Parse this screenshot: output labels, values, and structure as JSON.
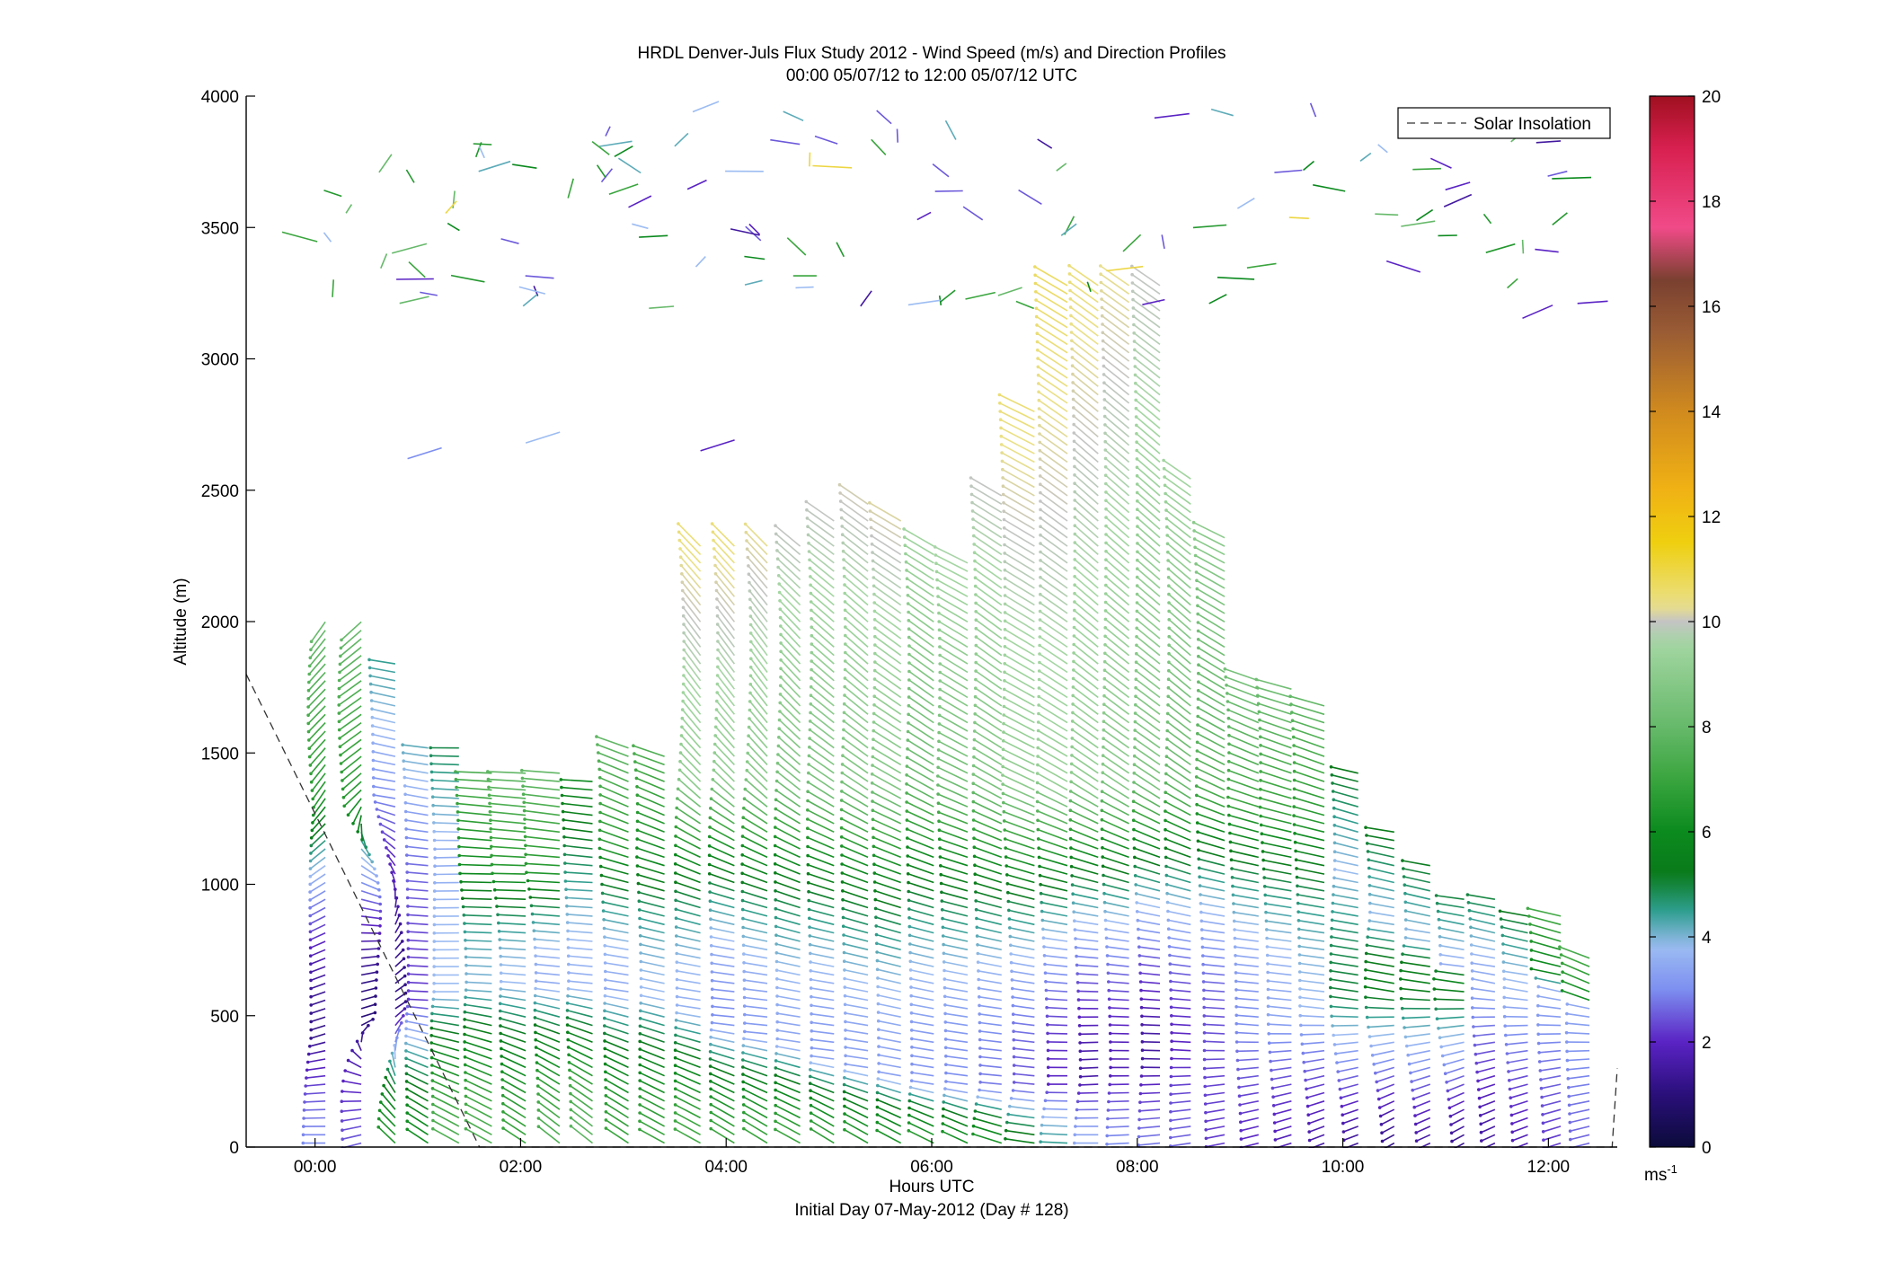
{
  "chart_data": {
    "type": "wind_barb_profile",
    "title": "HRDL Denver-Juls Flux Study 2012 - Wind Speed (m/s) and Direction Profiles",
    "subtitle": "00:00 05/07/12 to 12:00 05/07/12  UTC",
    "xlabel": "Hours UTC",
    "xlabel2": "Initial Day 07-May-2012 (Day # 128)",
    "ylabel": "Altitude (m)",
    "x_ticks": [
      "00:00",
      "02:00",
      "04:00",
      "06:00",
      "08:00",
      "10:00",
      "12:00"
    ],
    "x_tick_hours": [
      0,
      2,
      4,
      6,
      8,
      10,
      12
    ],
    "xlim_hours": [
      -0.67,
      12.67
    ],
    "y_ticks": [
      0,
      500,
      1000,
      1500,
      2000,
      2500,
      3000,
      3500,
      4000
    ],
    "ylim": [
      0,
      4000
    ],
    "legend": {
      "label": "Solar Insolation",
      "position": "top-right",
      "style": "dashed"
    },
    "colorbar": {
      "unit_label": "ms",
      "unit_exponent": "-1",
      "ticks": [
        0,
        2,
        4,
        6,
        8,
        10,
        12,
        14,
        16,
        18,
        20
      ],
      "range": [
        0,
        20
      ]
    },
    "solar_insolation": {
      "hours": [
        -0.67,
        1.6,
        12.62,
        12.67
      ],
      "altitude": [
        1800,
        0,
        0,
        300
      ]
    },
    "profiles": [
      {
        "hour": 0.1,
        "top": 2000,
        "low": [
          270,
          3.0,
          30,
          10,
          1.0
        ],
        "mid": [
          240,
          1.2,
          50,
          1.5,
          3.0
        ],
        "upp": [
          200,
          6.5,
          90,
          2.5,
          3.5
        ]
      },
      {
        "hour": 0.45,
        "top": 2000,
        "low": [
          245,
          2.5,
          40,
          10,
          2.0
        ],
        "mid": [
          60,
          1.0,
          60,
          1.5,
          3.0
        ],
        "upp": [
          210,
          6.5,
          30,
          1.5,
          2.5
        ]
      },
      {
        "hour": 0.78,
        "top": 1850,
        "low": [
          330,
          6.5,
          60,
          10,
          2.0
        ],
        "mid": [
          40,
          1.2,
          70,
          1.5,
          2.5
        ],
        "upp": [
          285,
          3.0,
          30,
          1.5,
          1.5
        ]
      },
      {
        "hour": 1.1,
        "top": 1550,
        "low": [
          320,
          6.2,
          60,
          10,
          4.5
        ],
        "mid": [
          275,
          2.2,
          10,
          2.0,
          3.0
        ],
        "upp": [
          280,
          2.8,
          20,
          3.0,
          4.0
        ]
      },
      {
        "hour": 1.4,
        "top": 1550,
        "low": [
          315,
          7.5,
          40,
          10,
          4.0
        ],
        "mid": [
          270,
          3.8,
          10,
          2.5,
          4.0
        ],
        "upp": [
          268,
          3.5,
          15,
          3.0,
          4.0
        ]
      },
      {
        "hour": 1.72,
        "top": 1450,
        "low": [
          315,
          7.5,
          30,
          10,
          4.0
        ],
        "mid": [
          275,
          4.0,
          10,
          2.5,
          4.0
        ],
        "upp": [
          272,
          6.0,
          10,
          3.0,
          3.0
        ]
      },
      {
        "hour": 2.05,
        "top": 1450,
        "low": [
          320,
          7.0,
          30,
          10,
          4.0
        ],
        "mid": [
          278,
          3.8,
          10,
          2.5,
          4.0
        ],
        "upp": [
          272,
          6.5,
          10,
          3.0,
          3.0
        ]
      },
      {
        "hour": 2.38,
        "top": 1450,
        "low": [
          325,
          7.5,
          25,
          10,
          4.0
        ],
        "mid": [
          280,
          3.5,
          10,
          2.5,
          4.0
        ],
        "upp": [
          275,
          6.5,
          10,
          3.0,
          3.0
        ]
      },
      {
        "hour": 2.7,
        "top": 1400,
        "low": [
          325,
          7.8,
          25,
          10,
          4.0
        ],
        "mid": [
          280,
          3.6,
          10,
          2.5,
          4.0
        ],
        "upp": [
          275,
          4.5,
          10,
          3.0,
          3.0
        ]
      },
      {
        "hour": 3.05,
        "top": 1550,
        "low": [
          320,
          7.0,
          25,
          10,
          4.0
        ],
        "mid": [
          285,
          3.5,
          15,
          2.5,
          4.0
        ],
        "upp": [
          300,
          6.5,
          30,
          3.0,
          3.0
        ]
      },
      {
        "hour": 3.4,
        "top": 1500,
        "low": [
          315,
          7.0,
          25,
          10,
          4.0
        ],
        "mid": [
          290,
          3.8,
          15,
          2.5,
          4.0
        ],
        "upp": [
          300,
          6.0,
          30,
          3.0,
          3.0
        ]
      },
      {
        "hour": 3.75,
        "top": 2300,
        "low": [
          315,
          7.2,
          25,
          10,
          4.0
        ],
        "mid": [
          285,
          3.6,
          20,
          2.5,
          4.0
        ],
        "upp": [
          330,
          9.0,
          20,
          4.0,
          4.5
        ]
      },
      {
        "hour": 4.08,
        "top": 2300,
        "low": [
          318,
          7.0,
          25,
          10,
          4.0
        ],
        "mid": [
          280,
          3.0,
          25,
          2.5,
          4.0
        ],
        "upp": [
          330,
          9.0,
          20,
          4.0,
          4.5
        ]
      },
      {
        "hour": 4.4,
        "top": 2300,
        "low": [
          318,
          7.0,
          25,
          10,
          4.0
        ],
        "mid": [
          280,
          3.2,
          20,
          2.5,
          4.0
        ],
        "upp": [
          330,
          8.8,
          20,
          4.0,
          4.5
        ]
      },
      {
        "hour": 4.72,
        "top": 2300,
        "low": [
          315,
          7.0,
          25,
          10,
          4.0
        ],
        "mid": [
          285,
          3.4,
          20,
          2.5,
          4.0
        ],
        "upp": [
          325,
          8.5,
          20,
          4.0,
          4.5
        ]
      },
      {
        "hour": 5.05,
        "top": 2400,
        "low": [
          318,
          6.8,
          25,
          10,
          4.0
        ],
        "mid": [
          282,
          3.2,
          20,
          2.5,
          4.0
        ],
        "upp": [
          320,
          8.5,
          20,
          4.0,
          4.5
        ]
      },
      {
        "hour": 5.38,
        "top": 2450,
        "low": [
          316,
          6.6,
          25,
          10,
          4.0
        ],
        "mid": [
          285,
          3.3,
          20,
          2.5,
          4.0
        ],
        "upp": [
          320,
          8.6,
          20,
          4.0,
          4.5
        ]
      },
      {
        "hour": 5.7,
        "top": 2400,
        "low": [
          314,
          6.4,
          25,
          10,
          4.0
        ],
        "mid": [
          288,
          3.3,
          20,
          2.5,
          4.0
        ],
        "upp": [
          315,
          8.7,
          20,
          4.0,
          4.5
        ]
      },
      {
        "hour": 6.02,
        "top": 2300,
        "low": [
          312,
          6.6,
          25,
          10,
          4.0
        ],
        "mid": [
          285,
          3.1,
          20,
          2.5,
          4.0
        ],
        "upp": [
          315,
          8.0,
          20,
          4.0,
          4.5
        ]
      },
      {
        "hour": 6.35,
        "top": 2250,
        "low": [
          310,
          6.3,
          25,
          10,
          4.0
        ],
        "mid": [
          283,
          3.0,
          20,
          2.5,
          4.0
        ],
        "upp": [
          310,
          8.2,
          20,
          4.0,
          4.5
        ]
      },
      {
        "hour": 6.68,
        "top": 2500,
        "low": [
          300,
          6.4,
          25,
          10,
          3.5
        ],
        "mid": [
          280,
          2.8,
          25,
          2.5,
          4.0
        ],
        "upp": [
          315,
          8.5,
          20,
          4.0,
          4.5
        ]
      },
      {
        "hour": 7.0,
        "top": 2800,
        "low": [
          285,
          5.5,
          30,
          10,
          3.0
        ],
        "mid": [
          280,
          2.5,
          30,
          2.5,
          4.0
        ],
        "upp": [
          310,
          9.0,
          20,
          4.0,
          4.5
        ]
      },
      {
        "hour": 7.32,
        "top": 3300,
        "low": [
          275,
          4.5,
          40,
          10,
          2.5
        ],
        "mid": [
          270,
          2.0,
          40,
          2.5,
          4.0
        ],
        "upp": [
          315,
          9.2,
          20,
          4.0,
          4.5
        ]
      },
      {
        "hour": 7.62,
        "top": 3300,
        "low": [
          270,
          3.5,
          50,
          10,
          2.0
        ],
        "mid": [
          265,
          1.6,
          50,
          2.5,
          4.0
        ],
        "upp": [
          320,
          9.0,
          20,
          4.0,
          4.5
        ]
      },
      {
        "hour": 7.92,
        "top": 3300,
        "low": [
          265,
          3.0,
          60,
          10,
          2.0
        ],
        "mid": [
          270,
          1.8,
          50,
          2.5,
          4.0
        ],
        "upp": [
          320,
          8.8,
          20,
          4.0,
          4.5
        ]
      },
      {
        "hour": 8.22,
        "top": 3300,
        "low": [
          260,
          2.8,
          60,
          10,
          2.0
        ],
        "mid": [
          272,
          1.5,
          50,
          2.5,
          4.0
        ],
        "upp": [
          320,
          8.5,
          20,
          4.0,
          4.5
        ]
      },
      {
        "hour": 8.52,
        "top": 2550,
        "low": [
          255,
          2.6,
          60,
          10,
          2.0
        ],
        "mid": [
          275,
          2.0,
          40,
          2.5,
          4.0
        ],
        "upp": [
          320,
          8.0,
          20,
          4.0,
          4.5
        ]
      },
      {
        "hour": 8.85,
        "top": 2350,
        "low": [
          250,
          2.2,
          60,
          10,
          1.5
        ],
        "mid": [
          275,
          2.4,
          30,
          2.5,
          4.0
        ],
        "upp": [
          310,
          7.5,
          20,
          4.0,
          4.5
        ]
      },
      {
        "hour": 9.18,
        "top": 1800,
        "low": [
          245,
          2.0,
          70,
          10,
          1.5
        ],
        "mid": [
          278,
          3.0,
          20,
          2.5,
          4.0
        ],
        "upp": [
          300,
          7.0,
          20,
          4.0,
          4.5
        ]
      },
      {
        "hour": 9.5,
        "top": 1750,
        "low": [
          240,
          1.8,
          80,
          10,
          1.5
        ],
        "mid": [
          280,
          3.4,
          15,
          2.5,
          4.0
        ],
        "upp": [
          295,
          6.8,
          20,
          4.0,
          4.5
        ]
      },
      {
        "hour": 9.82,
        "top": 1700,
        "low": [
          235,
          1.6,
          80,
          10,
          1.5
        ],
        "mid": [
          282,
          3.8,
          15,
          2.5,
          4.0
        ],
        "upp": [
          295,
          6.5,
          20,
          4.0,
          4.5
        ]
      },
      {
        "hour": 10.15,
        "top": 1450,
        "low": [
          235,
          1.4,
          80,
          10,
          1.5
        ],
        "mid": [
          285,
          5.0,
          15,
          2.5,
          4.0
        ],
        "upp": [
          290,
          3.8,
          20,
          4.0,
          4.5
        ]
      },
      {
        "hour": 10.5,
        "top": 1200,
        "low": [
          225,
          1.2,
          90,
          10,
          1.5
        ],
        "mid": [
          288,
          5.5,
          15,
          2.5,
          4.0
        ],
        "upp": [
          285,
          3.8,
          20,
          4.0,
          4.5
        ]
      },
      {
        "hour": 10.85,
        "top": 1100,
        "low": [
          230,
          1.5,
          80,
          10,
          1.5
        ],
        "mid": [
          285,
          5.6,
          15,
          2.5,
          4.0
        ],
        "upp": [
          285,
          3.8,
          20,
          4.0,
          4.5
        ]
      },
      {
        "hour": 11.18,
        "top": 950,
        "low": [
          225,
          1.3,
          80,
          10,
          1.5
        ],
        "mid": [
          285,
          5.8,
          15,
          2.5,
          4.0
        ],
        "upp": [
          282,
          3.5,
          20,
          4.0,
          4.5
        ]
      },
      {
        "hour": 11.48,
        "top": 950,
        "low": [
          230,
          1.5,
          60,
          10,
          1.5
        ],
        "mid": [
          290,
          3.5,
          20,
          2.5,
          4.0
        ],
        "upp": [
          285,
          3.5,
          20,
          4.0,
          4.5
        ]
      },
      {
        "hour": 11.8,
        "top": 900,
        "low": [
          235,
          1.8,
          50,
          10,
          1.5
        ],
        "mid": [
          290,
          3.8,
          20,
          2.5,
          4.0
        ],
        "upp": [
          285,
          3.8,
          20,
          4.0,
          4.5
        ]
      },
      {
        "hour": 12.12,
        "top": 900,
        "low": [
          240,
          2.2,
          40,
          10,
          1.5
        ],
        "mid": [
          292,
          3.5,
          20,
          2.5,
          4.0
        ],
        "upp": [
          290,
          5.8,
          20,
          4.0,
          4.5
        ]
      },
      {
        "hour": 12.4,
        "top": 750,
        "low": [
          245,
          2.6,
          40,
          10,
          1.5
        ],
        "mid": [
          295,
          3.5,
          20,
          2.5,
          4.0
        ],
        "upp": [
          300,
          6.0,
          20,
          4.0,
          4.5
        ]
      }
    ],
    "scattered_upper_vectors": "sparse individual wind vectors between 2600 m and 4000 m (purple, green, blue, yellow)"
  }
}
